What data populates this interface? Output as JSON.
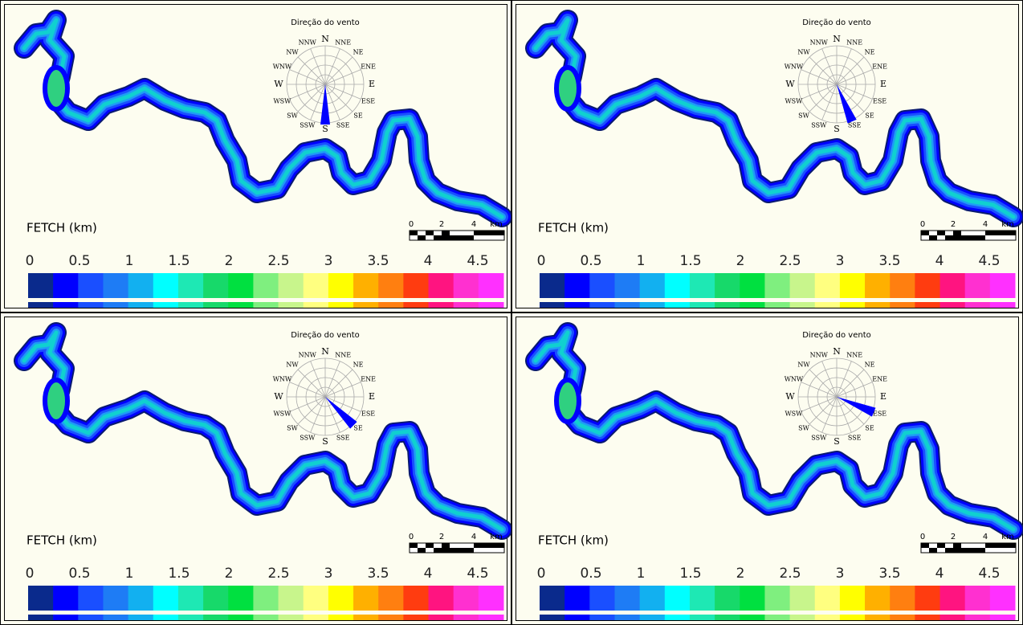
{
  "panels": [
    {
      "wind_title": "Direção do vento",
      "compass": [
        "N",
        "NNE",
        "NE",
        "ENE",
        "E",
        "ESE",
        "SE",
        "SSE",
        "S",
        "SSW",
        "SW",
        "WSW",
        "W",
        "WNW",
        "NW",
        "NNW"
      ],
      "fetch_label": "FETCH (km)",
      "legend_ticks": [
        "0",
        "0.5",
        "1",
        "1.5",
        "2",
        "2.5",
        "3",
        "3.5",
        "4",
        "4.5"
      ],
      "scale_labels": [
        "0",
        "2",
        "4",
        "km"
      ]
    },
    {
      "wind_title": "Direção do vento",
      "compass": [
        "N",
        "NNE",
        "NE",
        "ENE",
        "E",
        "ESE",
        "SE",
        "SSE",
        "S",
        "SSW",
        "SW",
        "WSW",
        "W",
        "WNW",
        "NW",
        "NNW"
      ],
      "fetch_label": "FETCH (km)",
      "legend_ticks": [
        "0",
        "0.5",
        "1",
        "1.5",
        "2",
        "2.5",
        "3",
        "3.5",
        "4",
        "4.5"
      ],
      "scale_labels": [
        "0",
        "2",
        "4",
        "km"
      ]
    },
    {
      "wind_title": "Direção do vento",
      "compass": [
        "N",
        "NNE",
        "NE",
        "ENE",
        "E",
        "ESE",
        "SE",
        "SSE",
        "S",
        "SSW",
        "SW",
        "WSW",
        "W",
        "WNW",
        "NW",
        "NNW"
      ],
      "fetch_label": "FETCH (km)",
      "legend_ticks": [
        "0",
        "0.5",
        "1",
        "1.5",
        "2",
        "2.5",
        "3",
        "3.5",
        "4",
        "4.5"
      ],
      "scale_labels": [
        "0",
        "2",
        "4",
        "km"
      ]
    },
    {
      "wind_title": "Direção do vento",
      "compass": [
        "N",
        "NNE",
        "NE",
        "ENE",
        "E",
        "ESE",
        "SE",
        "SSE",
        "S",
        "SSW",
        "SW",
        "WSW",
        "W",
        "WNW",
        "NW",
        "NNW"
      ],
      "fetch_label": "FETCH (km)",
      "legend_ticks": [
        "0",
        "0.5",
        "1",
        "1.5",
        "2",
        "2.5",
        "3",
        "3.5",
        "4",
        "4.5"
      ],
      "scale_labels": [
        "0",
        "2",
        "4",
        "km"
      ]
    }
  ]
}
